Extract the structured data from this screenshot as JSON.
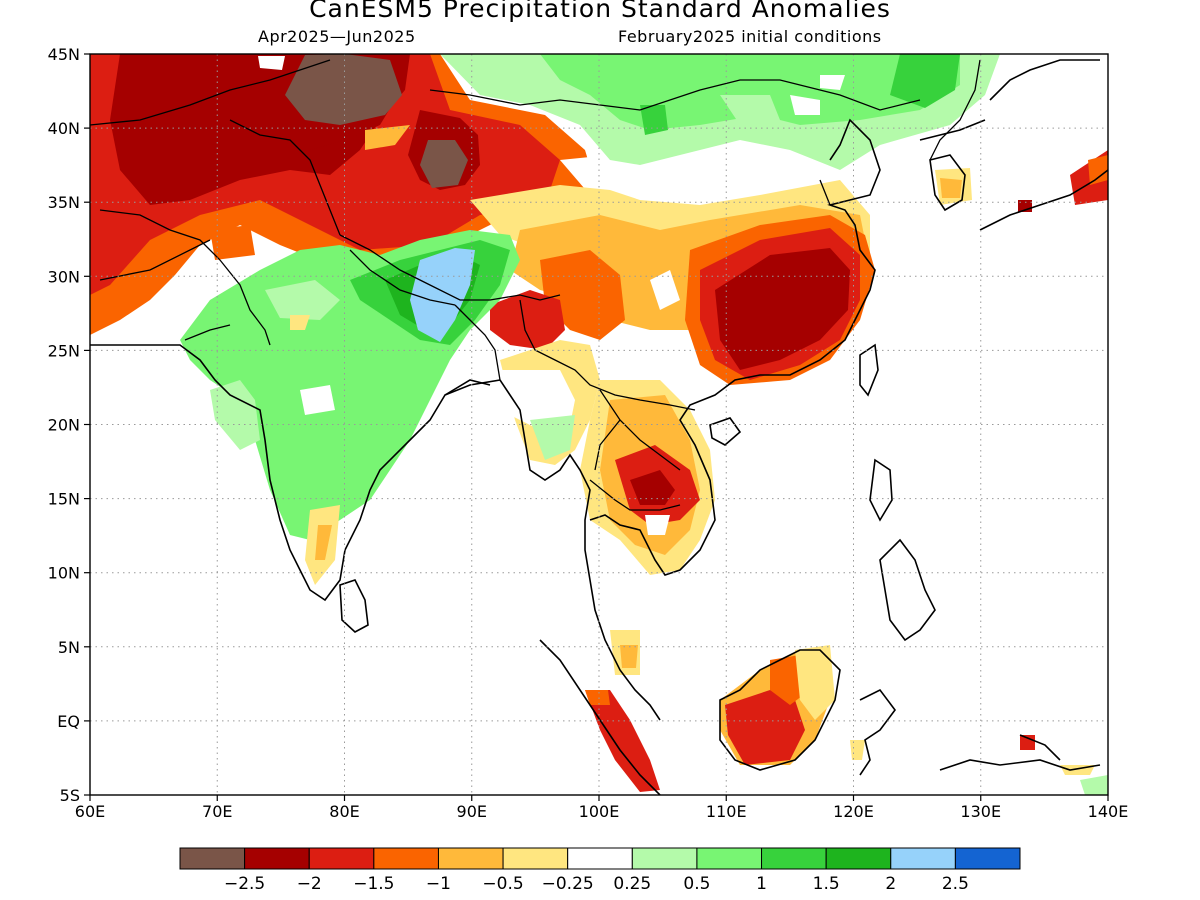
{
  "title": "CanESM5 Precipitation Standard Anomalies",
  "subtitle_left": "Apr2025—Jun2025",
  "subtitle_right": "February2025 initial conditions",
  "map": {
    "lon_range": [
      60,
      140
    ],
    "lat_range": [
      -5,
      45
    ],
    "x_ticks": [
      "60E",
      "70E",
      "80E",
      "90E",
      "100E",
      "110E",
      "120E",
      "130E",
      "140E"
    ],
    "y_ticks": [
      "45N",
      "40N",
      "35N",
      "30N",
      "25N",
      "20N",
      "15N",
      "10N",
      "5N",
      "EQ",
      "5S"
    ],
    "grid": "dotted"
  },
  "colorbar": {
    "colors": [
      "#7a5548",
      "#a50000",
      "#dc1e12",
      "#fa6400",
      "#ffb93a",
      "#ffe680",
      "#ffffff",
      "#b4faaa",
      "#78f573",
      "#37d23c",
      "#1eb41e",
      "#96d2fa",
      "#1464d2"
    ],
    "labels": [
      "−2.5",
      "−2",
      "−1.5",
      "−1",
      "−0.5",
      "−0.25",
      "0.25",
      "0.5",
      "1",
      "1.5",
      "2",
      "2.5"
    ]
  },
  "anomaly_regions": [
    {
      "name": "Central Asia / Tibet",
      "level": "-2.5",
      "color": "#7a5548"
    },
    {
      "name": "Northern India",
      "level": "1.5",
      "color": "#37d23c"
    },
    {
      "name": "Himalaya",
      "level": "2",
      "color": "#96d2fa"
    },
    {
      "name": "Southeast China",
      "level": "-2",
      "color": "#a50000"
    },
    {
      "name": "Cambodia",
      "level": "-1.5",
      "color": "#dc1e12"
    },
    {
      "name": "Borneo",
      "level": "-1.5",
      "color": "#dc1e12"
    }
  ]
}
